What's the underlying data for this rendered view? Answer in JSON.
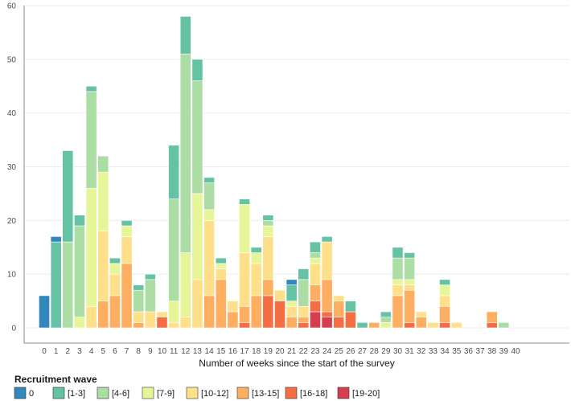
{
  "chart_data": {
    "type": "bar",
    "stacked": true,
    "xlabel": "Number of weeks since the start of the survey",
    "ylabel": "",
    "ylim": [
      0,
      60
    ],
    "yticks": [
      0,
      10,
      20,
      30,
      40,
      50,
      60
    ],
    "grid": "horizontal",
    "legend_title": "Recruitment wave",
    "legend_position": "bottom-left",
    "categories": [
      "0",
      "1",
      "2",
      "3",
      "4",
      "5",
      "6",
      "7",
      "8",
      "9",
      "10",
      "11",
      "12",
      "13",
      "14",
      "15",
      "16",
      "17",
      "18",
      "19",
      "20",
      "21",
      "22",
      "23",
      "24",
      "25",
      "26",
      "27",
      "28",
      "29",
      "30",
      "31",
      "32",
      "33",
      "34",
      "35",
      "36",
      "37",
      "38",
      "39",
      "40"
    ],
    "series": [
      {
        "name": "[19-20]",
        "color": "#d53e4f",
        "values": [
          0,
          0,
          0,
          0,
          0,
          0,
          0,
          0,
          0,
          0,
          0,
          0,
          0,
          0,
          0,
          0,
          0,
          0,
          0,
          0,
          0,
          0,
          0,
          3,
          2,
          0,
          0,
          0,
          0,
          0,
          0,
          0,
          0,
          0,
          0,
          0,
          0,
          0,
          0,
          0,
          0
        ]
      },
      {
        "name": "[16-18]",
        "color": "#f46d43",
        "values": [
          0,
          0,
          0,
          0,
          0,
          0,
          0,
          0,
          0,
          0,
          2,
          0,
          0,
          0,
          0,
          0,
          0,
          1,
          0,
          6,
          5,
          0,
          1,
          2,
          1,
          2,
          3,
          0,
          0,
          0,
          0,
          1,
          0,
          0,
          1,
          0,
          0,
          0,
          1,
          0,
          0
        ]
      },
      {
        "name": "[13-15]",
        "color": "#fdae61",
        "values": [
          0,
          0,
          0,
          0,
          0,
          5,
          6,
          12,
          1,
          0,
          0,
          0,
          0,
          0,
          6,
          9,
          3,
          3,
          6,
          3,
          0,
          2,
          1,
          3,
          6,
          3,
          0,
          0,
          1,
          0,
          6,
          6,
          2,
          0,
          3,
          0,
          0,
          0,
          2,
          0,
          0
        ]
      },
      {
        "name": "[10-12]",
        "color": "#fee08b",
        "values": [
          0,
          0,
          0,
          0,
          4,
          13,
          4,
          5,
          2,
          3,
          1,
          1,
          2,
          9,
          14,
          2,
          2,
          10,
          6,
          8,
          2,
          2,
          2,
          4,
          7,
          1,
          0,
          0,
          0,
          0,
          2,
          1,
          1,
          1,
          2,
          1,
          0,
          0,
          0,
          0,
          0
        ]
      },
      {
        "name": "[7-9]",
        "color": "#e6f598",
        "values": [
          0,
          0,
          0,
          2,
          22,
          11,
          2,
          2,
          0,
          0,
          0,
          4,
          12,
          16,
          2,
          1,
          0,
          9,
          2,
          2,
          0,
          1,
          0,
          1,
          0,
          0,
          0,
          0,
          0,
          1,
          1,
          1,
          0,
          0,
          2,
          0,
          0,
          0,
          0,
          0,
          0
        ]
      },
      {
        "name": "[4-6]",
        "color": "#abdda4",
        "values": [
          0,
          0,
          16,
          17,
          18,
          3,
          0,
          0,
          4,
          6,
          0,
          19,
          37,
          21,
          5,
          0,
          0,
          0,
          0,
          1,
          0,
          0,
          5,
          1,
          0,
          0,
          0,
          0,
          0,
          1,
          4,
          4,
          0,
          0,
          0,
          0,
          0,
          0,
          0,
          1,
          0
        ]
      },
      {
        "name": "[1-3]",
        "color": "#66c2a5",
        "values": [
          0,
          16,
          17,
          2,
          1,
          0,
          1,
          1,
          1,
          1,
          0,
          10,
          7,
          4,
          1,
          1,
          0,
          1,
          1,
          1,
          0,
          3,
          2,
          2,
          1,
          0,
          2,
          1,
          0,
          1,
          2,
          1,
          0,
          0,
          1,
          0,
          0,
          0,
          0,
          0,
          0
        ]
      },
      {
        "name": "0",
        "color": "#3288bd",
        "values": [
          6,
          1,
          0,
          0,
          0,
          0,
          0,
          0,
          0,
          0,
          0,
          0,
          0,
          0,
          0,
          0,
          0,
          0,
          0,
          0,
          0,
          1,
          0,
          0,
          0,
          0,
          0,
          0,
          0,
          0,
          0,
          0,
          0,
          0,
          0,
          0,
          0,
          0,
          0,
          0,
          0
        ]
      }
    ],
    "legend_order": [
      "0",
      "[1-3]",
      "[4-6]",
      "[7-9]",
      "[10-12]",
      "[13-15]",
      "[16-18]",
      "[19-20]"
    ]
  }
}
